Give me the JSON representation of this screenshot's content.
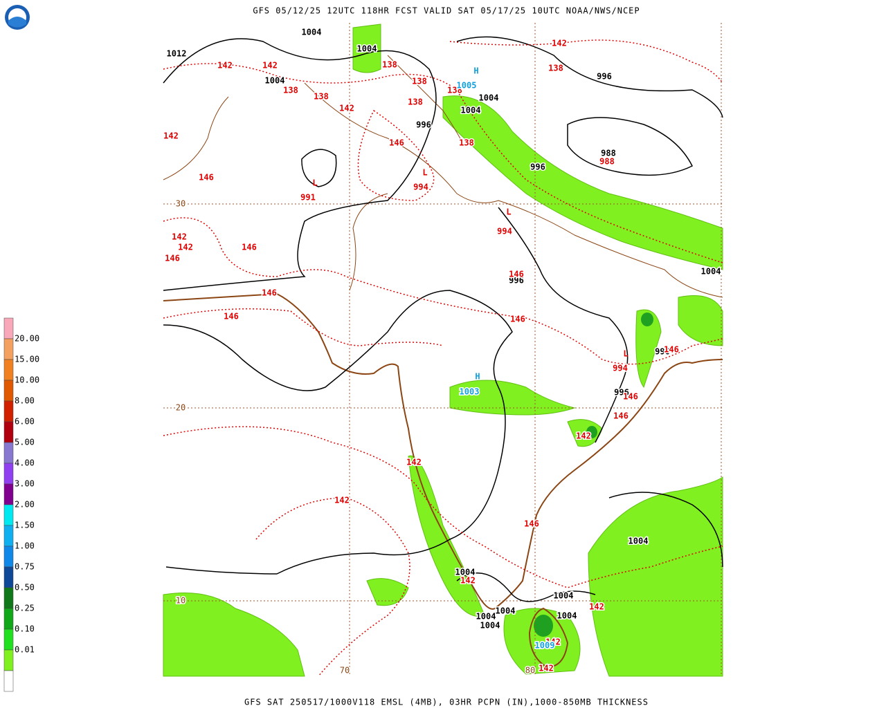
{
  "header": {
    "title": "GFS 05/12/25 12UTC 118HR FCST VALID SAT 05/17/25 10UTC NOAA/NWS/NCEP"
  },
  "footer": {
    "text": "GFS SAT 250517/1000V118 EMSL (4MB), 03HR PCPN (IN),1000-850MB THICKNESS"
  },
  "legend": {
    "labels": [
      "20.00",
      "15.00",
      "10.00",
      "8.00",
      "6.00",
      "5.00",
      "4.00",
      "3.00",
      "2.00",
      "1.50",
      "1.00",
      "0.75",
      "0.50",
      "0.25",
      "0.10",
      "0.01"
    ],
    "colors": [
      "#f8a8b8",
      "#f4a060",
      "#f08020",
      "#e05800",
      "#d02000",
      "#b00010",
      "#8878d0",
      "#9040f0",
      "#800090",
      "#00e8f0",
      "#10b0f0",
      "#1088e8",
      "#104898",
      "#107818",
      "#10a818",
      "#20e020",
      "#80f020",
      "#ffffff"
    ]
  },
  "map": {
    "isobars": {
      "color": "#000000",
      "labels": [
        "1004",
        "1004",
        "1012",
        "1004",
        "1004",
        "1004",
        "996",
        "996",
        "996",
        "988",
        "996",
        "1004",
        "996",
        "996",
        "1004",
        "1004",
        "1004",
        "1004",
        "1004",
        "1004",
        "1004"
      ]
    },
    "thickness": {
      "color": "#e00000",
      "labels": [
        "142",
        "142",
        "142",
        "138",
        "138",
        "138",
        "138",
        "138",
        "138",
        "138",
        "142",
        "142",
        "146",
        "138",
        "146",
        "988",
        "994",
        "991",
        "994",
        "142",
        "142",
        "146",
        "146",
        "146",
        "146",
        "146",
        "146",
        "994",
        "146",
        "146",
        "146",
        "142",
        "142",
        "142",
        "146",
        "142",
        "142",
        "142",
        "142"
      ]
    },
    "lows": {
      "color": "#e00000",
      "labels": [
        "L",
        "L",
        "L",
        "L"
      ]
    },
    "highs": {
      "color": "#10a0e0",
      "labels": [
        "H",
        "1005",
        "H",
        "1003",
        "1009"
      ]
    },
    "grid_labels": {
      "color": "#8b4513",
      "labels": [
        "30",
        "20",
        "10",
        "70",
        "80"
      ]
    }
  }
}
